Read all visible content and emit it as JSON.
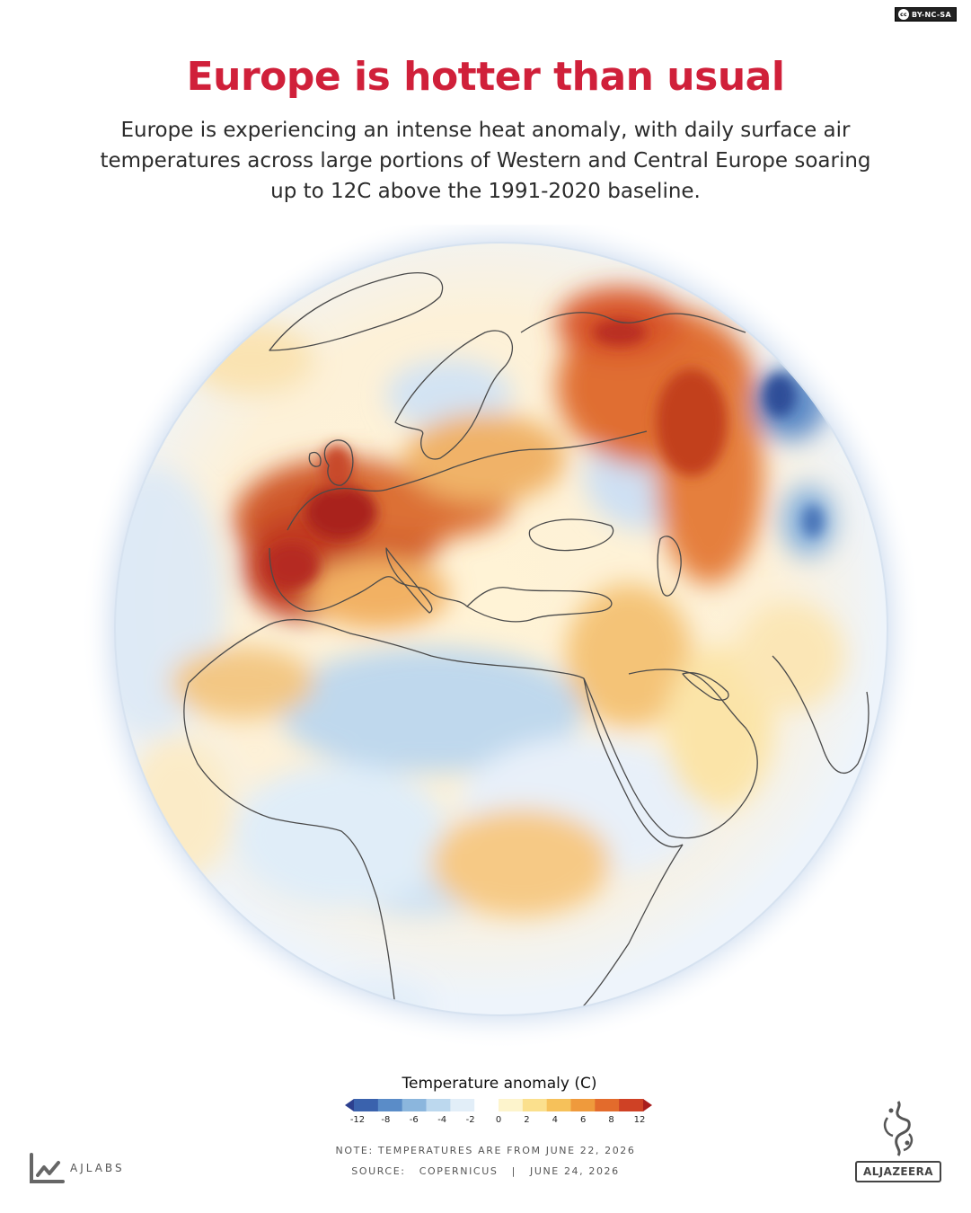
{
  "license": {
    "icon": "cc-icon",
    "text": "BY-NC-SA"
  },
  "header": {
    "title": "Europe is hotter than usual",
    "subtitle": "Europe is experiencing an intense heat anomaly, with daily surface air temperatures across large portions of Western and Central Europe soaring up to 12C above the 1991-2020 baseline."
  },
  "map": {
    "projection": "orthographic globe centered on Europe, Middle East and Africa",
    "variable": "Temperature anomaly",
    "unit": "C"
  },
  "legend": {
    "title": "Temperature anomaly (C)",
    "ticks": [
      "-12",
      "-8",
      "-6",
      "-4",
      "-2",
      "0",
      "2",
      "4",
      "6",
      "8",
      "12"
    ],
    "colors": [
      "#2c3f8f",
      "#3a62ad",
      "#5a8cc8",
      "#8bb6dd",
      "#bcd8ee",
      "#e2eef8",
      "#ffffff",
      "#fdf4cc",
      "#fbe08d",
      "#f6c15a",
      "#ef9a3c",
      "#e36b2c",
      "#cf4125",
      "#a81d1d"
    ]
  },
  "footer": {
    "note": "NOTE: TEMPERATURES ARE FROM JUNE 22, 2026",
    "source_label": "SOURCE:",
    "source_name": "COPERNICUS",
    "separator": "|",
    "date": "JUNE 24, 2026",
    "lab_name": "AJLABS",
    "brand": "ALJAZEERA"
  }
}
